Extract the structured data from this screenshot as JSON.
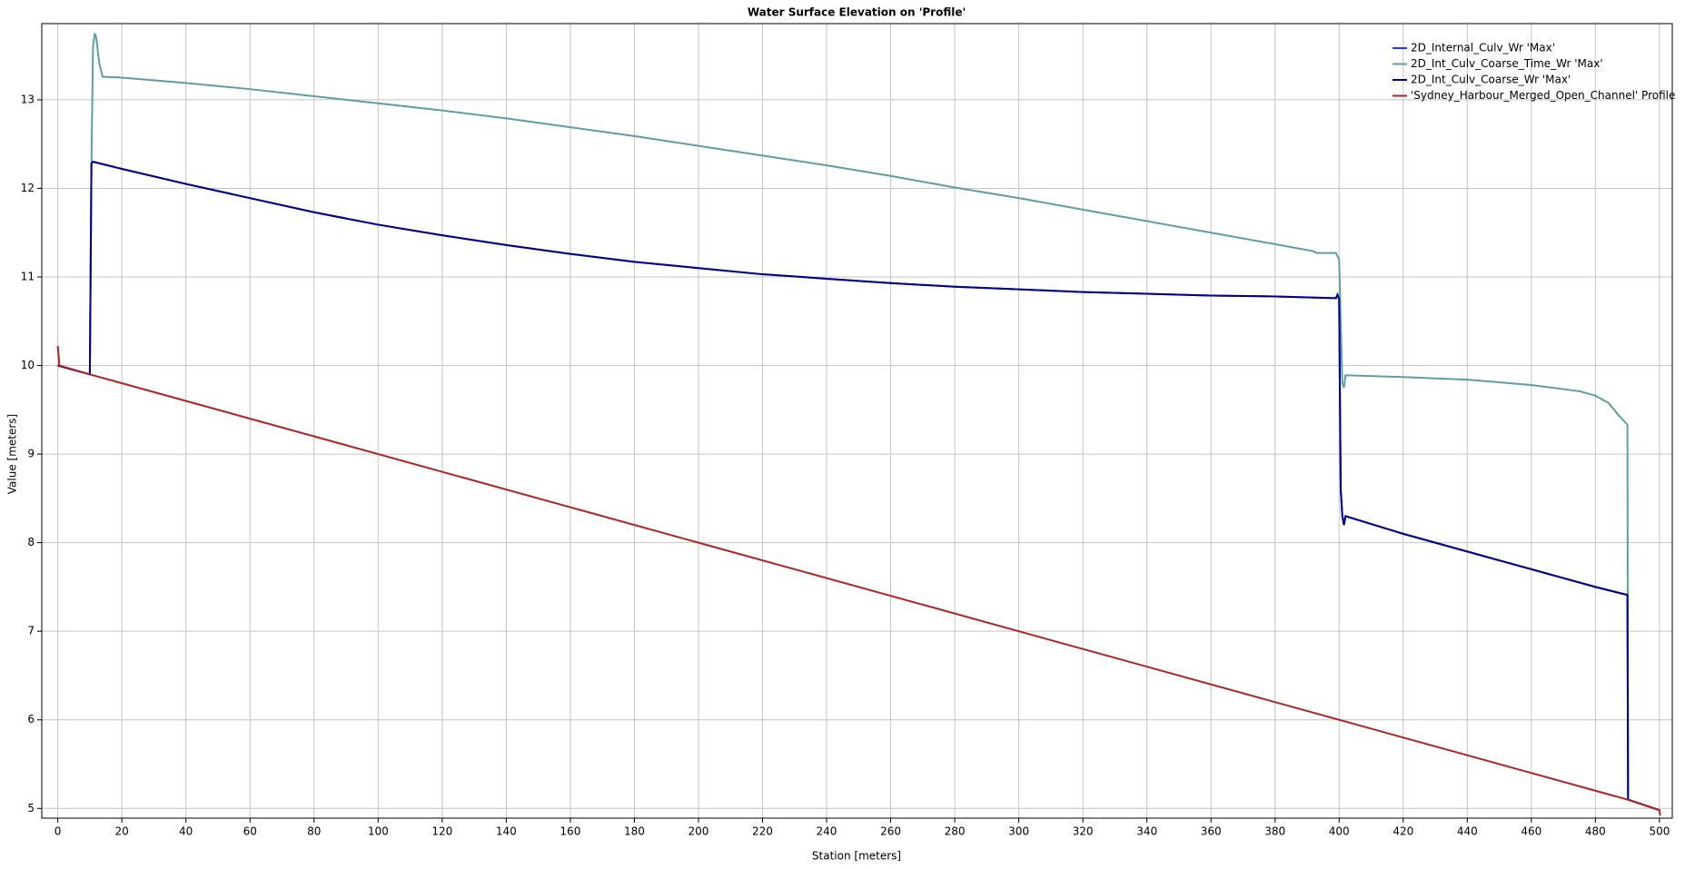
{
  "chart_data": {
    "type": "line",
    "title": "Water Surface Elevation on 'Profile'",
    "xlabel": "Station [meters]",
    "ylabel": "Value [meters]",
    "xlim": [
      -5,
      504
    ],
    "ylim": [
      4.89,
      13.86
    ],
    "xticks": [
      0,
      20,
      40,
      60,
      80,
      100,
      120,
      140,
      160,
      180,
      200,
      220,
      240,
      260,
      280,
      300,
      320,
      340,
      360,
      380,
      400,
      420,
      440,
      460,
      480,
      500
    ],
    "yticks": [
      5,
      6,
      7,
      8,
      9,
      10,
      11,
      12,
      13
    ],
    "grid": true,
    "legend": "upper right",
    "series": [
      {
        "name": "2D_Internal_Culv_Wr 'Max'",
        "color": "#1f3fd6",
        "x": [
          0,
          10,
          10.5,
          11,
          20,
          40,
          60,
          80,
          100,
          120,
          140,
          160,
          180,
          200,
          220,
          240,
          260,
          280,
          300,
          320,
          340,
          360,
          380,
          399,
          399.5,
          400,
          400.5,
          401,
          401.5,
          402,
          420,
          440,
          460,
          480,
          490,
          490.2,
          500
        ],
        "values": [
          10.0,
          9.9,
          12.28,
          12.3,
          12.22,
          12.05,
          11.89,
          11.73,
          11.59,
          11.47,
          11.36,
          11.26,
          11.17,
          11.1,
          11.03,
          10.98,
          10.93,
          10.89,
          10.86,
          10.83,
          10.81,
          10.79,
          10.78,
          10.76,
          10.8,
          10.75,
          8.6,
          8.3,
          8.2,
          8.3,
          8.1,
          7.9,
          7.7,
          7.5,
          7.41,
          5.1,
          4.98
        ]
      },
      {
        "name": "2D_Int_Culv_Coarse_Time_Wr 'Max'",
        "color": "#5f9ea0",
        "x": [
          0,
          10,
          10.5,
          11,
          11.5,
          12,
          13,
          14,
          20,
          40,
          60,
          80,
          100,
          120,
          140,
          160,
          180,
          200,
          220,
          240,
          260,
          280,
          300,
          320,
          340,
          360,
          380,
          392,
          393,
          399,
          400,
          401,
          401.5,
          402,
          420,
          440,
          460,
          475,
          480,
          484,
          487,
          489,
          490,
          490.2,
          500
        ],
        "values": [
          10.0,
          9.9,
          12.3,
          13.6,
          13.75,
          13.7,
          13.4,
          13.26,
          13.25,
          13.19,
          13.12,
          13.04,
          12.96,
          12.88,
          12.79,
          12.69,
          12.59,
          12.48,
          12.37,
          12.26,
          12.14,
          12.01,
          11.89,
          11.76,
          11.63,
          11.5,
          11.37,
          11.29,
          11.27,
          11.27,
          11.2,
          9.8,
          9.75,
          9.89,
          9.87,
          9.84,
          9.78,
          9.71,
          9.66,
          9.58,
          9.45,
          9.37,
          9.33,
          5.1,
          4.98
        ]
      },
      {
        "name": "2D_Int_Culv_Coarse_Wr 'Max'",
        "color": "#00008b",
        "x": [
          0,
          10,
          10.5,
          11,
          20,
          40,
          60,
          80,
          100,
          120,
          140,
          160,
          180,
          200,
          220,
          240,
          260,
          280,
          300,
          320,
          340,
          360,
          380,
          399,
          399.5,
          400,
          400.5,
          401,
          401.5,
          402,
          420,
          440,
          460,
          480,
          490,
          490.2,
          500
        ],
        "values": [
          10.0,
          9.9,
          12.28,
          12.3,
          12.22,
          12.05,
          11.89,
          11.73,
          11.59,
          11.47,
          11.36,
          11.26,
          11.17,
          11.1,
          11.03,
          10.98,
          10.93,
          10.89,
          10.86,
          10.83,
          10.81,
          10.79,
          10.78,
          10.76,
          10.8,
          10.75,
          8.6,
          8.3,
          8.2,
          8.3,
          8.1,
          7.9,
          7.7,
          7.5,
          7.41,
          5.1,
          4.98
        ]
      },
      {
        "name": "'Sydney_Harbour_Merged_Open_Channel' Profile",
        "color": "#b22222",
        "x": [
          0,
          0.5,
          10,
          100,
          200,
          300,
          400,
          490,
          500,
          500.2
        ],
        "values": [
          10.22,
          10.0,
          9.9,
          9.0,
          8.0,
          7.0,
          6.0,
          5.1,
          4.98,
          4.92
        ]
      }
    ]
  }
}
